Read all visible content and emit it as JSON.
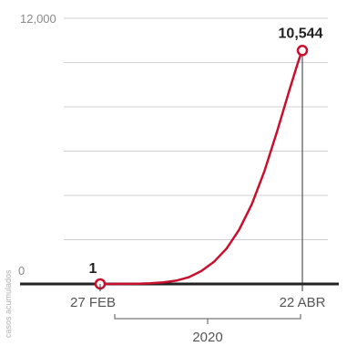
{
  "chart_data": {
    "type": "line",
    "series": [
      {
        "values": [
          [
            0,
            1
          ],
          [
            5,
            2
          ],
          [
            10,
            5
          ],
          [
            15,
            10
          ],
          [
            20,
            30
          ],
          [
            25,
            70
          ],
          [
            30,
            150
          ],
          [
            35,
            300
          ],
          [
            40,
            580
          ],
          [
            45,
            1000
          ],
          [
            50,
            1600
          ],
          [
            55,
            2450
          ],
          [
            60,
            3600
          ],
          [
            65,
            5100
          ],
          [
            70,
            6900
          ],
          [
            75,
            8800
          ],
          [
            78,
            9900
          ],
          [
            79,
            10250
          ],
          [
            80,
            10544
          ]
        ],
        "color": "#c8102e"
      }
    ],
    "x_start_label": "27 FEB",
    "x_end_label": "22 ABR",
    "x_range": [
      0,
      80
    ],
    "year_label": "2020",
    "yticks": [
      0,
      12000
    ],
    "ytick_labels": [
      "0",
      "12,000"
    ],
    "ylim": [
      0,
      12000
    ],
    "start_value_label": "1",
    "end_value_label": "10,544",
    "side_label": "casos acumulados",
    "grid": true,
    "colors": {
      "line": "#c8102e",
      "grid": "#d0d0d0",
      "axis": "#222222"
    }
  }
}
